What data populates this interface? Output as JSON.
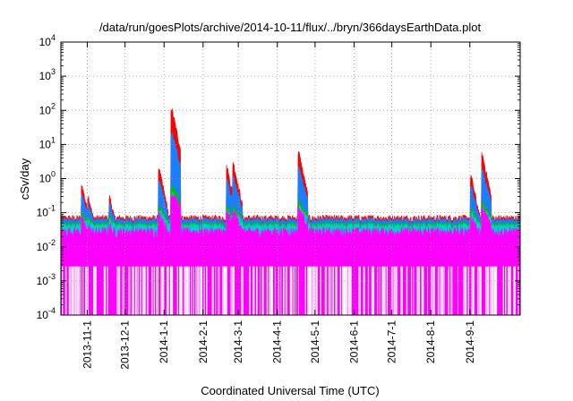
{
  "chart_data": {
    "type": "area",
    "title": "/data/run/goesPlots/archive/2014-10-11/flux/../bryn/366daysEarthData.plot",
    "xlabel": "Coordinated Universal Time (UTC)",
    "ylabel": "cSv/day",
    "yscale": "log",
    "ylim": [
      0.0001,
      10000
    ],
    "xlim": [
      "2013-10-11",
      "2014-10-11"
    ],
    "grid": true,
    "legend": "none",
    "y_tick_labels": [
      {
        "base": "10",
        "exp": "-4",
        "value": 0.0001
      },
      {
        "base": "10",
        "exp": "-3",
        "value": 0.001
      },
      {
        "base": "10",
        "exp": "-2",
        "value": 0.01
      },
      {
        "base": "10",
        "exp": "-1",
        "value": 0.1
      },
      {
        "base": "10",
        "exp": "0",
        "value": 1
      },
      {
        "base": "10",
        "exp": "1",
        "value": 10
      },
      {
        "base": "10",
        "exp": "2",
        "value": 100
      },
      {
        "base": "10",
        "exp": "3",
        "value": 1000
      },
      {
        "base": "10",
        "exp": "4",
        "value": 10000
      }
    ],
    "x_tick_labels": [
      "2013-11-1",
      "2013-12-1",
      "2014-1-1",
      "2014-2-1",
      "2014-3-1",
      "2014-4-1",
      "2014-5-1",
      "2014-6-1",
      "2014-7-1",
      "2014-8-1",
      "2014-9-1"
    ],
    "colors": {
      "red": "#ff0000",
      "blue": "#1a7fff",
      "green": "#00c000",
      "cyan": "#00d0d0",
      "magenta": "#ff00ff"
    },
    "series_colors": [
      "#ff0000",
      "#1a7fff",
      "#00c000",
      "#00d0d0",
      "#ff00ff"
    ],
    "baseline": {
      "red": 0.07,
      "blue": 0.06,
      "green": 0.045,
      "cyan": 0.04,
      "magenta_top": 0.025,
      "magenta_low": 0.003
    },
    "events": [
      {
        "date": "2013-10-28",
        "peak": 0.6
      },
      {
        "date": "2013-11-02",
        "peak": 0.3
      },
      {
        "date": "2013-11-19",
        "peak": 0.28
      },
      {
        "date": "2013-12-28",
        "peak": 2.0
      },
      {
        "date": "2014-01-07",
        "peak": 120
      },
      {
        "date": "2014-02-20",
        "peak": 2.2
      },
      {
        "date": "2014-02-25",
        "peak": 3.0
      },
      {
        "date": "2014-04-18",
        "peak": 6.0
      },
      {
        "date": "2014-09-02",
        "peak": 1.2
      },
      {
        "date": "2014-09-11",
        "peak": 5.0
      }
    ]
  }
}
